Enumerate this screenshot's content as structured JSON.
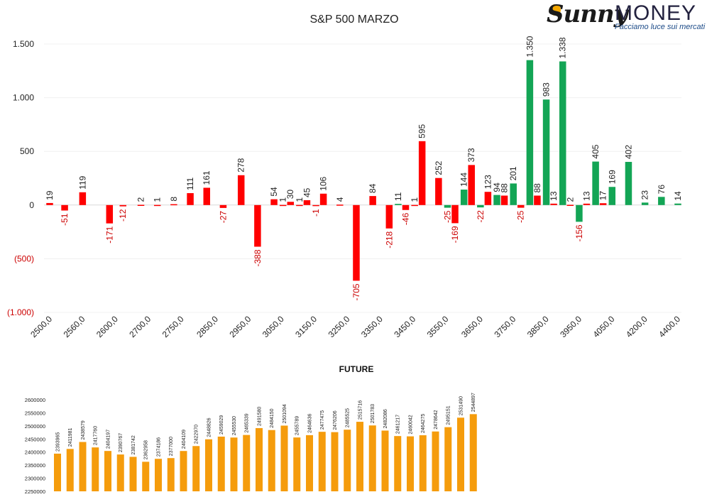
{
  "brand": {
    "logo_word": "Sunny",
    "name": "MONEY",
    "tagline": "Facciamo luce sui mercati"
  },
  "colors": {
    "green": "#13a555",
    "red": "#ff0000",
    "orange": "#f59c0c",
    "neg_axis": "#cc0000"
  },
  "chart_data": [
    {
      "type": "bar",
      "title": "S&P 500 MARZO",
      "xlabel": "",
      "ylabel": "",
      "ylim": [
        -1000,
        1500
      ],
      "y_ticks": [
        {
          "value": 1500,
          "label": "1.500"
        },
        {
          "value": 1000,
          "label": "1.000"
        },
        {
          "value": 500,
          "label": "500"
        },
        {
          "value": 0,
          "label": "0"
        },
        {
          "value": -500,
          "label": "(500)"
        },
        {
          "value": -1000,
          "label": "(1.000)"
        }
      ],
      "categories": [
        "2500,0",
        "2560,0",
        "2600,0",
        "2700,0",
        "2750,0",
        "2850,0",
        "2950,0",
        "3050,0",
        "3150,0",
        "3250,0",
        "3350,0",
        "3450,0",
        "3550,0",
        "3650,0",
        "3750,0",
        "3850,0",
        "3950,0",
        "4050,0",
        "4200,0",
        "4400,0"
      ],
      "bars": [
        {
          "x": 16,
          "value": 19,
          "label": "19",
          "series": "red"
        },
        {
          "x": 26,
          "value": -51,
          "label": "-51",
          "series": "red"
        },
        {
          "x": 38,
          "value": 119,
          "label": "119",
          "series": "red"
        },
        {
          "x": 56,
          "value": -171,
          "label": "-171",
          "series": "red"
        },
        {
          "x": 65,
          "value": -12,
          "label": "-12",
          "series": "red"
        },
        {
          "x": 77,
          "value": 2,
          "label": "2",
          "series": "red"
        },
        {
          "x": 88,
          "value": 1,
          "label": "1",
          "series": "red"
        },
        {
          "x": 99,
          "value": 8,
          "label": "8",
          "series": "red"
        },
        {
          "x": 110,
          "value": 111,
          "label": "111",
          "series": "red"
        },
        {
          "x": 121,
          "value": 161,
          "label": "161",
          "series": "red"
        },
        {
          "x": 132,
          "value": -27,
          "label": "-27",
          "series": "red"
        },
        {
          "x": 144,
          "value": 278,
          "label": "278",
          "series": "red"
        },
        {
          "x": 155,
          "value": -388,
          "label": "-388",
          "series": "red"
        },
        {
          "x": 166,
          "value": 54,
          "label": "54",
          "series": "red"
        },
        {
          "x": 172,
          "value": 1,
          "label": "1",
          "series": "red"
        },
        {
          "x": 177,
          "value": 30,
          "label": "30",
          "series": "red"
        },
        {
          "x": 183,
          "value": 1,
          "label": "1",
          "series": "red"
        },
        {
          "x": 188,
          "value": 45,
          "label": "45",
          "series": "red"
        },
        {
          "x": 194,
          "value": -1,
          "label": "-1",
          "series": "red"
        },
        {
          "x": 199,
          "value": 106,
          "label": "106",
          "series": "red"
        },
        {
          "x": 210,
          "value": 4,
          "label": "4",
          "series": "red"
        },
        {
          "x": 221,
          "value": -705,
          "label": "-705",
          "series": "red"
        },
        {
          "x": 232,
          "value": 84,
          "label": "84",
          "series": "red"
        },
        {
          "x": 243,
          "value": -218,
          "label": "-218",
          "series": "red"
        },
        {
          "x": 249,
          "value": 11,
          "label": "11",
          "series": "green"
        },
        {
          "x": 254,
          "value": -46,
          "label": "-46",
          "series": "red"
        },
        {
          "x": 260,
          "value": 1,
          "label": "1",
          "series": "red"
        },
        {
          "x": 265,
          "value": 595,
          "label": "595",
          "series": "red"
        },
        {
          "x": 276,
          "value": 252,
          "label": "252",
          "series": "red"
        },
        {
          "x": 282,
          "value": -25,
          "label": "-25",
          "series": "green"
        },
        {
          "x": 287,
          "value": -169,
          "label": "-169",
          "series": "red"
        },
        {
          "x": 293,
          "value": 144,
          "label": "144",
          "series": "green"
        },
        {
          "x": 298,
          "value": 373,
          "label": "373",
          "series": "red"
        },
        {
          "x": 304,
          "value": -22,
          "label": "-22",
          "series": "green"
        },
        {
          "x": 309,
          "value": 123,
          "label": "123",
          "series": "red"
        },
        {
          "x": 315,
          "value": 94,
          "label": "94",
          "series": "green"
        },
        {
          "x": 320,
          "value": 88,
          "label": "88",
          "series": "red"
        },
        {
          "x": 326,
          "value": 201,
          "label": "201",
          "series": "green"
        },
        {
          "x": 331,
          "value": -25,
          "label": "-25",
          "series": "red"
        },
        {
          "x": 337,
          "value": 1350,
          "label": "1.350",
          "series": "green"
        },
        {
          "x": 342,
          "value": 88,
          "label": "88",
          "series": "red"
        },
        {
          "x": 348,
          "value": 983,
          "label": "983",
          "series": "green"
        },
        {
          "x": 353,
          "value": 13,
          "label": "13",
          "series": "red"
        },
        {
          "x": 359,
          "value": 1338,
          "label": "1.338",
          "series": "green"
        },
        {
          "x": 364,
          "value": 2,
          "label": "2",
          "series": "red"
        },
        {
          "x": 370,
          "value": -156,
          "label": "-156",
          "series": "green"
        },
        {
          "x": 375,
          "value": 13,
          "label": "13",
          "series": "red"
        },
        {
          "x": 381,
          "value": 405,
          "label": "405",
          "series": "green"
        },
        {
          "x": 386,
          "value": 17,
          "label": "17",
          "series": "red"
        },
        {
          "x": 392,
          "value": 169,
          "label": "169",
          "series": "green"
        },
        {
          "x": 403,
          "value": 402,
          "label": "402",
          "series": "green"
        },
        {
          "x": 414,
          "value": 23,
          "label": "23",
          "series": "green"
        },
        {
          "x": 425,
          "value": 76,
          "label": "76",
          "series": "green"
        },
        {
          "x": 436,
          "value": 14,
          "label": "14",
          "series": "green"
        }
      ],
      "x_ticks": [
        {
          "x": 16,
          "label": "2500,0"
        },
        {
          "x": 38,
          "label": "2560,0"
        },
        {
          "x": 60,
          "label": "2600,0"
        },
        {
          "x": 82,
          "label": "2700,0"
        },
        {
          "x": 104,
          "label": "2750,0"
        },
        {
          "x": 127,
          "label": "2850,0"
        },
        {
          "x": 149,
          "label": "2950,0"
        },
        {
          "x": 171,
          "label": "3050,0"
        },
        {
          "x": 193,
          "label": "3150,0"
        },
        {
          "x": 215,
          "label": "3250,0"
        },
        {
          "x": 237,
          "label": "3350,0"
        },
        {
          "x": 259,
          "label": "3450,0"
        },
        {
          "x": 281,
          "label": "3550,0"
        },
        {
          "x": 304,
          "label": "3650,0"
        },
        {
          "x": 326,
          "label": "3750,0"
        },
        {
          "x": 348,
          "label": "3850,0"
        },
        {
          "x": 370,
          "label": "3950,0"
        },
        {
          "x": 392,
          "label": "4050,0"
        },
        {
          "x": 414,
          "label": "4200,0"
        },
        {
          "x": 436,
          "label": "4400,0"
        }
      ],
      "grid": true,
      "legend": "none"
    },
    {
      "type": "bar",
      "title": "FUTURE",
      "xlabel": "",
      "ylabel": "",
      "ylim": [
        2250000,
        2600000
      ],
      "y_ticks": [
        2600000,
        2550000,
        2500000,
        2450000,
        2400000,
        2350000,
        2300000,
        2250000
      ],
      "values": [
        2393965,
        2411981,
        2438579,
        2417760,
        2404197,
        2390767,
        2381742,
        2362958,
        2374186,
        2377000,
        2404109,
        2422970,
        2448826,
        2459029,
        2455530,
        2465339,
        2491580,
        2484150,
        2501094,
        2455789,
        2464636,
        2477475,
        2476206,
        2485525,
        2515716,
        2501783,
        2482086,
        2461217,
        2460042,
        2464275,
        2478642,
        2495151,
        2531490,
        2544897
      ],
      "grid": false,
      "legend": "none"
    }
  ]
}
